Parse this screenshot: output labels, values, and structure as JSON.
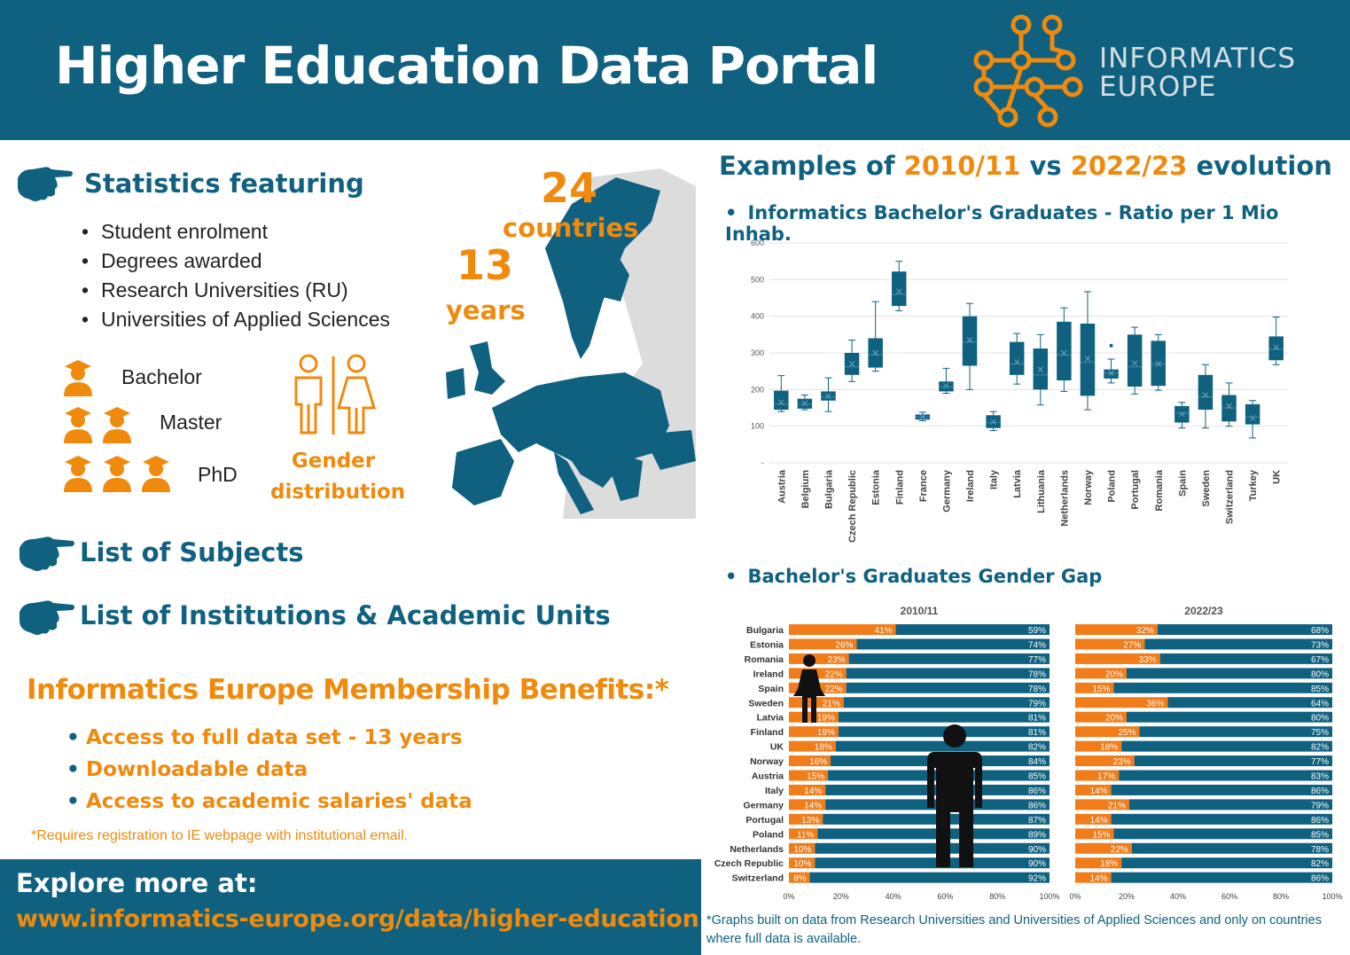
{
  "header": {
    "title": "Higher Education Data Portal",
    "logo_line1": "INFORMATICS",
    "logo_line2": "EUROPE",
    "bg_color": "#0f617f",
    "accent_color": "#f08a0c"
  },
  "stats": {
    "heading": "Statistics featuring",
    "items": [
      "Student enrolment",
      "Degrees awarded",
      "Research Universities (RU)",
      "Universities of Applied Sciences"
    ],
    "countries_number": "24",
    "countries_label": "countries",
    "years_number": "13",
    "years_label": "years",
    "levels": [
      "Bachelor",
      "Master",
      "PhD"
    ],
    "gender_line1": "Gender",
    "gender_line2": "distribution"
  },
  "subjects_heading": "List of Subjects",
  "institutions_heading": "List of Institutions & Academic Units",
  "membership": {
    "heading": "Informatics Europe Membership Benefits:*",
    "items": [
      "Access to full data set - 13 years",
      "Downloadable data",
      "Access to academic salaries' data"
    ],
    "footnote": "*Requires registration to IE webpage with institutional email."
  },
  "explore": {
    "label": "Explore more at:",
    "url": "www.informatics-europe.org/data/higher-education"
  },
  "examples": {
    "title_prefix": "Examples of ",
    "year1": "2010/11",
    "vs": " vs ",
    "year2": "2022/23",
    "title_suffix": " evolution",
    "chart1_title": "Informatics Bachelor's Graduates  - Ratio per 1 Mio Inhab.",
    "chart2_title": "Bachelor's Graduates Gender Gap",
    "footnote": "*Graphs  built on data from  Research Universities and Universities of Applied Sciences and only on countries where full data is available."
  },
  "chart_data": [
    {
      "type": "box",
      "title": "Informatics Bachelor's Graduates  - Ratio per 1 Mio Inhab.",
      "ylim": [
        0,
        600
      ],
      "yticks": [
        "-",
        "100",
        "200",
        "300",
        "400",
        "500",
        "600"
      ],
      "grid": true,
      "color": "#0f617f",
      "categories": [
        "Austria",
        "Belgium",
        "Bulgaria",
        "Czech Republic",
        "Estonia",
        "Finland",
        "France",
        "Germany",
        "Ireland",
        "Italy",
        "Latvia",
        "Lithuania",
        "Netherlands",
        "Norway",
        "Poland",
        "Portugal",
        "Romania",
        "Spain",
        "Sweden",
        "Switzerland",
        "Turkey",
        "UK"
      ],
      "boxes": [
        {
          "min": 140,
          "q1": 145,
          "median": 160,
          "q3": 197,
          "max": 238,
          "mean": 165
        },
        {
          "min": 145,
          "q1": 148,
          "median": 160,
          "q3": 175,
          "max": 185,
          "mean": 162
        },
        {
          "min": 140,
          "q1": 170,
          "median": 180,
          "q3": 195,
          "max": 232,
          "mean": 182
        },
        {
          "min": 222,
          "q1": 240,
          "median": 262,
          "q3": 300,
          "max": 335,
          "mean": 270
        },
        {
          "min": 250,
          "q1": 260,
          "median": 295,
          "q3": 340,
          "max": 440,
          "mean": 300
        },
        {
          "min": 415,
          "q1": 428,
          "median": 460,
          "q3": 522,
          "max": 550,
          "mean": 468
        },
        {
          "min": 115,
          "q1": 118,
          "median": 125,
          "q3": 132,
          "max": 138,
          "mean": 125
        },
        {
          "min": 190,
          "q1": 195,
          "median": 208,
          "q3": 222,
          "max": 258,
          "mean": 210
        },
        {
          "min": 200,
          "q1": 265,
          "median": 330,
          "q3": 400,
          "max": 435,
          "mean": 335
        },
        {
          "min": 88,
          "q1": 95,
          "median": 110,
          "q3": 130,
          "max": 140,
          "mean": 112
        },
        {
          "min": 215,
          "q1": 240,
          "median": 270,
          "q3": 330,
          "max": 353,
          "mean": 275
        },
        {
          "min": 158,
          "q1": 200,
          "median": 240,
          "q3": 312,
          "max": 350,
          "mean": 255
        },
        {
          "min": 195,
          "q1": 225,
          "median": 295,
          "q3": 385,
          "max": 423,
          "mean": 300
        },
        {
          "min": 145,
          "q1": 183,
          "median": 275,
          "q3": 380,
          "max": 467,
          "mean": 285
        },
        {
          "min": 218,
          "q1": 230,
          "median": 245,
          "q3": 255,
          "max": 283,
          "mean": 245,
          "outlier": 320
        },
        {
          "min": 188,
          "q1": 208,
          "median": 262,
          "q3": 350,
          "max": 370,
          "mean": 272
        },
        {
          "min": 198,
          "q1": 210,
          "median": 270,
          "q3": 333,
          "max": 350,
          "mean": 270
        },
        {
          "min": 95,
          "q1": 110,
          "median": 135,
          "q3": 155,
          "max": 165,
          "mean": 133
        },
        {
          "min": 95,
          "q1": 145,
          "median": 180,
          "q3": 240,
          "max": 268,
          "mean": 185
        },
        {
          "min": 100,
          "q1": 113,
          "median": 150,
          "q3": 185,
          "max": 218,
          "mean": 155
        },
        {
          "min": 68,
          "q1": 105,
          "median": 125,
          "q3": 160,
          "max": 170,
          "mean": 122
        },
        {
          "min": 268,
          "q1": 280,
          "median": 310,
          "q3": 345,
          "max": 398,
          "mean": 315
        }
      ]
    },
    {
      "type": "bar",
      "subtype": "stacked-horizontal-100",
      "title": "2010/11",
      "categories": [
        "Bulgaria",
        "Estonia",
        "Romania",
        "Ireland",
        "Spain",
        "Sweden",
        "Latvia",
        "Finland",
        "UK",
        "Norway",
        "Austria",
        "Italy",
        "Germany",
        "Portugal ",
        "Poland",
        "Netherlands",
        "Czech Republic",
        "Switzerland"
      ],
      "series": [
        {
          "color": "#f07c1a",
          "values": [
            41,
            26,
            23,
            22,
            22,
            21,
            19,
            19,
            18,
            16,
            15,
            14,
            14,
            13,
            11,
            10,
            10,
            8
          ],
          "labels": [
            "41%",
            "26%",
            "23%",
            "22%",
            "22%",
            "21%",
            "19%",
            "19%",
            "18%",
            "16%",
            "15%",
            "14%",
            "14%",
            "13%",
            "11%",
            "10%",
            "10%",
            "8%"
          ]
        },
        {
          "color": "#0f617f",
          "values": [
            59,
            74,
            77,
            78,
            78,
            79,
            81,
            81,
            82,
            84,
            85,
            86,
            86,
            87,
            89,
            90,
            90,
            92
          ],
          "labels": [
            "59%",
            "74%",
            "77%",
            "78%",
            "78%",
            "79%",
            "81%",
            "81%",
            "82%",
            "84%",
            "85%",
            "86%",
            "86%",
            "87%",
            "89%",
            "90%",
            "90%",
            "92%"
          ]
        }
      ],
      "xticks": [
        "0%",
        "20%",
        "40%",
        "60%",
        "80%",
        "100%"
      ],
      "xlim": [
        0,
        100
      ]
    },
    {
      "type": "bar",
      "subtype": "stacked-horizontal-100",
      "title": "2022/23",
      "categories": [
        "Bulgaria",
        "Estonia",
        "Romania",
        "Ireland",
        "Spain",
        "Sweden",
        "Latvia",
        "Finland",
        "UK",
        "Norway",
        "Austria",
        "Italy",
        "Germany",
        "Portugal ",
        "Poland",
        "Netherlands",
        "Czech Republic",
        "Switzerland"
      ],
      "series": [
        {
          "color": "#f07c1a",
          "values": [
            32,
            27,
            33,
            20,
            15,
            36,
            20,
            25,
            18,
            23,
            17,
            14,
            21,
            14,
            15,
            22,
            18,
            14
          ],
          "labels": [
            "32%",
            "27%",
            "33%",
            "20%",
            "15%",
            "36%",
            "20%",
            "25%",
            "18%",
            "23%",
            "17%",
            "14%",
            "21%",
            "14%",
            "15%",
            "22%",
            "18%",
            "14%"
          ]
        },
        {
          "color": "#0f617f",
          "values": [
            68,
            73,
            67,
            80,
            85,
            64,
            80,
            75,
            82,
            77,
            83,
            86,
            79,
            86,
            85,
            78,
            82,
            86
          ],
          "labels": [
            "68%",
            "73%",
            "67%",
            "80%",
            "85%",
            "64%",
            "80%",
            "75%",
            "82%",
            "77%",
            "83%",
            "86%",
            "79%",
            "86%",
            "85%",
            "78%",
            "82%",
            "86%"
          ]
        }
      ],
      "xticks": [
        "0%",
        "20%",
        "40%",
        "60%",
        "80%",
        "100%"
      ],
      "xlim": [
        0,
        100
      ]
    }
  ]
}
